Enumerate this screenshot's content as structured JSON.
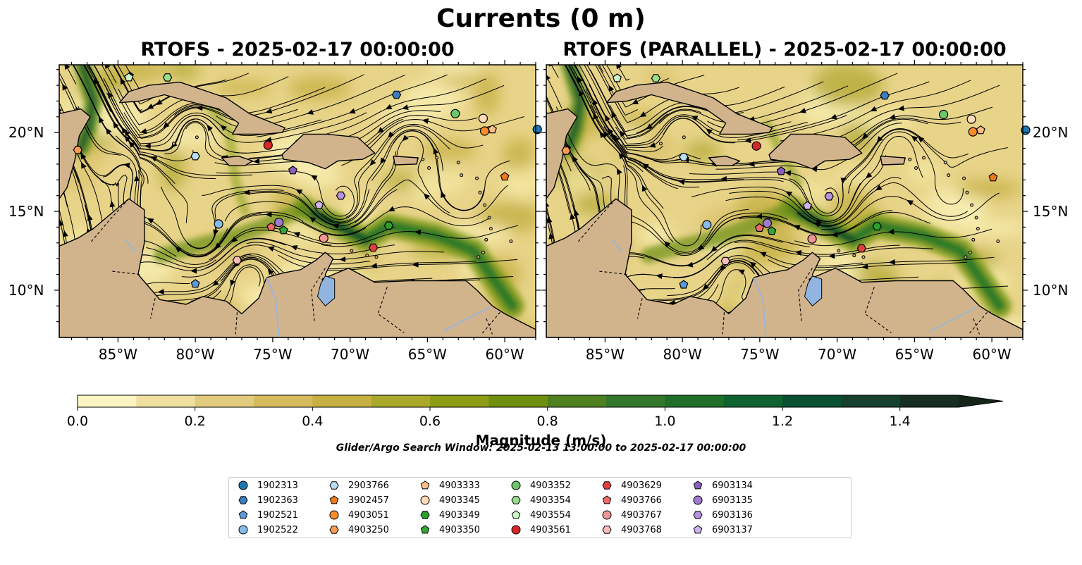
{
  "figure": {
    "title": "Currents (0 m)",
    "panels": [
      {
        "title": "RTOFS - 2025-02-17 00:00:00"
      },
      {
        "title": "RTOFS (PARALLEL) - 2025-02-17 00:00:00"
      }
    ],
    "lon_ticks": [
      "85°W",
      "80°W",
      "75°W",
      "70°W",
      "65°W",
      "60°W"
    ],
    "lat_ticks": [
      "20°N",
      "15°N",
      "10°N"
    ],
    "colorbar": {
      "label": "Magnitude (m/s)",
      "ticks": [
        "0.0",
        "0.2",
        "0.4",
        "0.6",
        "0.8",
        "1.0",
        "1.2",
        "1.4"
      ],
      "min": 0.0,
      "max": 1.5,
      "extend": "max",
      "colors": [
        "#fbf5c2",
        "#efe0a0",
        "#e2cb7c",
        "#d6bb5c",
        "#c6b042",
        "#a9a82a",
        "#8c9c14",
        "#6f900f",
        "#4f8020",
        "#33772b",
        "#1f6e2a",
        "#0f6330",
        "#0a5132",
        "#14402d",
        "#162f22",
        "#15251a"
      ]
    },
    "search_window": "Glider/Argo Search Window: 2025-02-13 13:00:00 to 2025-02-17 00:00:00",
    "legend": [
      {
        "id": "1902313",
        "marker": "circle",
        "color": "#1f77b4"
      },
      {
        "id": "1902363",
        "marker": "hexagon",
        "color": "#3a7fbd"
      },
      {
        "id": "1902521",
        "marker": "pentagon",
        "color": "#5b9ad6"
      },
      {
        "id": "1902522",
        "marker": "circle",
        "color": "#86bce8"
      },
      {
        "id": "2903766",
        "marker": "hexagon",
        "color": "#b9dcf5"
      },
      {
        "id": "3902457",
        "marker": "pentagon",
        "color": "#ee7b18"
      },
      {
        "id": "4903051",
        "marker": "circle",
        "color": "#fb8c2c"
      },
      {
        "id": "4903250",
        "marker": "hexagon",
        "color": "#fb9a50"
      },
      {
        "id": "4903333",
        "marker": "pentagon",
        "color": "#fdbf86"
      },
      {
        "id": "4903345",
        "marker": "circle",
        "color": "#fedcb8"
      },
      {
        "id": "4903349",
        "marker": "hexagon",
        "color": "#2ca02c"
      },
      {
        "id": "4903350",
        "marker": "pentagon",
        "color": "#33a532"
      },
      {
        "id": "4903352",
        "marker": "circle",
        "color": "#6cc56a"
      },
      {
        "id": "4903354",
        "marker": "hexagon",
        "color": "#98df8a"
      },
      {
        "id": "4903554",
        "marker": "pentagon",
        "color": "#ccf5c4"
      },
      {
        "id": "4903561",
        "marker": "circle",
        "color": "#d62728"
      },
      {
        "id": "4903629",
        "marker": "hexagon",
        "color": "#e04040"
      },
      {
        "id": "4903766",
        "marker": "pentagon",
        "color": "#ef6b6b"
      },
      {
        "id": "4903767",
        "marker": "circle",
        "color": "#f29595"
      },
      {
        "id": "4903768",
        "marker": "hexagon",
        "color": "#fbbcbc"
      },
      {
        "id": "6903134",
        "marker": "pentagon",
        "color": "#8b5fc0"
      },
      {
        "id": "6903135",
        "marker": "circle",
        "color": "#a07ad0"
      },
      {
        "id": "6903136",
        "marker": "hexagon",
        "color": "#b593e0"
      },
      {
        "id": "6903137",
        "marker": "pentagon",
        "color": "#cfb3ee"
      }
    ],
    "platforms": [
      {
        "id": "1902313",
        "lon": -57.9,
        "lat": 20.2
      },
      {
        "id": "1902363",
        "lon": -67.0,
        "lat": 22.4
      },
      {
        "id": "1902521",
        "lon": -80.0,
        "lat": 10.4
      },
      {
        "id": "1902522",
        "lon": -78.5,
        "lat": 14.2
      },
      {
        "id": "2903766",
        "lon": -80.0,
        "lat": 18.5
      },
      {
        "id": "3902457",
        "lon": -60.0,
        "lat": 17.2
      },
      {
        "id": "4903051",
        "lon": -61.3,
        "lat": 20.1
      },
      {
        "id": "4903250",
        "lon": -87.6,
        "lat": 18.9
      },
      {
        "id": "4903333",
        "lon": -60.8,
        "lat": 20.2
      },
      {
        "id": "4903345",
        "lon": -61.4,
        "lat": 20.9
      },
      {
        "id": "4903349",
        "lon": -67.5,
        "lat": 14.1
      },
      {
        "id": "4903350",
        "lon": -74.3,
        "lat": 13.8
      },
      {
        "id": "4903352",
        "lon": -63.2,
        "lat": 21.2
      },
      {
        "id": "4903354",
        "lon": -81.8,
        "lat": 23.5
      },
      {
        "id": "4903554",
        "lon": -84.3,
        "lat": 23.5
      },
      {
        "id": "4903561",
        "lon": -75.3,
        "lat": 19.2
      },
      {
        "id": "4903629",
        "lon": -68.5,
        "lat": 12.7
      },
      {
        "id": "4903766",
        "lon": -75.1,
        "lat": 14.0
      },
      {
        "id": "4903767",
        "lon": -71.7,
        "lat": 13.3
      },
      {
        "id": "4903768",
        "lon": -77.3,
        "lat": 11.9
      },
      {
        "id": "6903134",
        "lon": -73.7,
        "lat": 17.6
      },
      {
        "id": "6903135",
        "lon": -74.6,
        "lat": 14.3
      },
      {
        "id": "6903136",
        "lon": -70.6,
        "lat": 16.0
      },
      {
        "id": "6903137",
        "lon": -72.0,
        "lat": 15.4
      }
    ]
  }
}
